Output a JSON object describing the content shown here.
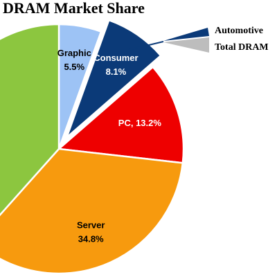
{
  "chart_data": {
    "type": "pie",
    "title": "DRAM Market Share",
    "categories": [
      "Graphic",
      "Consumer",
      "PC",
      "Server",
      null
    ],
    "values": [
      5.5,
      8.1,
      13.2,
      34.8,
      38.4
    ],
    "value_labels": [
      "5.5%",
      "8.1%",
      "PC, 13.2%",
      "34.8%",
      null
    ],
    "colors": [
      "#9dc3f5",
      "#0b3a78",
      "#ee0000",
      "#f79a0e",
      "#8cc63f"
    ],
    "exploded": [
      false,
      true,
      false,
      false,
      false
    ],
    "annotations": [
      "Automotive",
      "Total DRAM"
    ]
  }
}
